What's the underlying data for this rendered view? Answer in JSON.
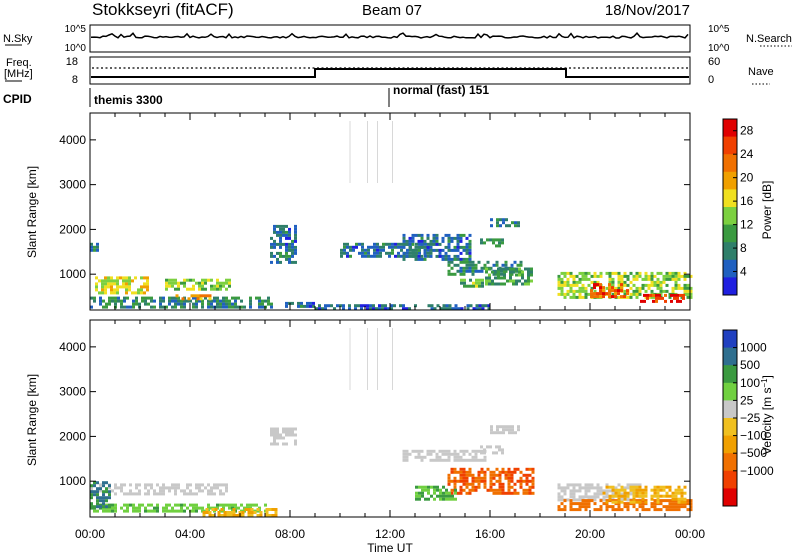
{
  "header": {
    "station": "Stokkseyri (fitACF)",
    "beam": "Beam 07",
    "date": "18/Nov/2017"
  },
  "strip_panels": {
    "sky_noise": {
      "left_label": "N.Sky",
      "left_ticks": [
        "10^5",
        "10^0"
      ],
      "right_label": "N.Search",
      "right_ticks": [
        "10^5",
        "10^0"
      ]
    },
    "frequency": {
      "left_label_line1": "Freq.",
      "left_label_line2": "[MHz]",
      "left_ticks": [
        "18",
        "8"
      ],
      "right_label": "Nave",
      "right_ticks": [
        "60",
        "0"
      ]
    },
    "cpid": {
      "label": "CPID",
      "segments": [
        {
          "start": "00:00",
          "text": "themis 3300"
        },
        {
          "start": "12:00",
          "text": "normal (fast) 151"
        }
      ]
    }
  },
  "chart_data": [
    {
      "type": "heatmap",
      "title": "",
      "xlabel": "",
      "ylabel": "Slant Range [km]",
      "yticks": [
        "1000",
        "2000",
        "3000",
        "4000"
      ],
      "ylim": [
        200,
        4600
      ],
      "xlim": [
        "00:00",
        "24:00"
      ],
      "colorbar": {
        "label": "Power [dB]",
        "ticks": [
          "4",
          "8",
          "12",
          "16",
          "20",
          "24",
          "28"
        ],
        "colors": [
          "#2020e0",
          "#2060c0",
          "#2f7f6a",
          "#3a9a40",
          "#7cd040",
          "#f0e020",
          "#f0a000",
          "#f07000",
          "#f04000",
          "#e00000"
        ]
      },
      "echo_regions": [
        {
          "t0": 0.0,
          "t1": 7.3,
          "r0": 250,
          "r1": 500,
          "level": 8
        },
        {
          "t0": 0.2,
          "t1": 2.3,
          "r0": 600,
          "r1": 950,
          "level": 16
        },
        {
          "t0": 3.0,
          "t1": 5.6,
          "r0": 650,
          "r1": 900,
          "level": 14
        },
        {
          "t0": 3.3,
          "t1": 4.8,
          "r0": 450,
          "r1": 550,
          "level": 20
        },
        {
          "t0": 7.8,
          "t1": 9.0,
          "r0": 260,
          "r1": 380,
          "level": 6
        },
        {
          "t0": 9.0,
          "t1": 13.0,
          "r0": 250,
          "r1": 330,
          "level": 5
        },
        {
          "t0": 13.5,
          "t1": 16.0,
          "r0": 250,
          "r1": 330,
          "level": 5
        },
        {
          "t0": 7.2,
          "t1": 8.2,
          "r0": 1250,
          "r1": 2100,
          "level": 6
        },
        {
          "t0": 10.0,
          "t1": 13.5,
          "r0": 1400,
          "r1": 1700,
          "level": 6
        },
        {
          "t0": 12.5,
          "t1": 15.2,
          "r0": 1350,
          "r1": 1900,
          "level": 6
        },
        {
          "t0": 14.3,
          "t1": 17.2,
          "r0": 1000,
          "r1": 1300,
          "level": 8
        },
        {
          "t0": 15.8,
          "t1": 17.7,
          "r0": 750,
          "r1": 1150,
          "level": 10
        },
        {
          "t0": 14.8,
          "t1": 15.7,
          "r0": 700,
          "r1": 900,
          "level": 12
        },
        {
          "t0": 16.0,
          "t1": 17.1,
          "r0": 2100,
          "r1": 2250,
          "level": 8
        },
        {
          "t0": 15.6,
          "t1": 16.5,
          "r0": 1650,
          "r1": 1800,
          "level": 8
        },
        {
          "t0": 18.7,
          "t1": 24.0,
          "r0": 450,
          "r1": 1050,
          "level": 14
        },
        {
          "t0": 20.0,
          "t1": 21.5,
          "r0": 500,
          "r1": 800,
          "level": 24
        },
        {
          "t0": 22.0,
          "t1": 23.8,
          "r0": 380,
          "r1": 560,
          "level": 27
        },
        {
          "t0": 0.0,
          "t1": 0.3,
          "r0": 1500,
          "r1": 1700,
          "level": 6
        }
      ]
    },
    {
      "type": "heatmap",
      "title": "",
      "xlabel": "Time UT",
      "ylabel": "Slant Range [km]",
      "yticks": [
        "1000",
        "2000",
        "3000",
        "4000"
      ],
      "xticks": [
        "00:00",
        "04:00",
        "08:00",
        "12:00",
        "16:00",
        "20:00",
        "00:00"
      ],
      "ylim": [
        200,
        4600
      ],
      "xlim": [
        "00:00",
        "24:00"
      ],
      "colorbar": {
        "label": "Velocity [m s^-1]",
        "ticks": [
          "1000",
          "500",
          "100",
          "25",
          "-25",
          "-100",
          "-500",
          "-1000"
        ],
        "colors": [
          "#2040c0",
          "#2f6f8f",
          "#3a9a40",
          "#70d040",
          "#c8c8c8",
          "#f0c020",
          "#f0a000",
          "#f07000",
          "#f04000",
          "#e00000"
        ]
      },
      "echo_regions": [
        {
          "t0": 0.0,
          "t1": 5.5,
          "r0": 700,
          "r1": 950,
          "level": 0
        },
        {
          "t0": 0.0,
          "t1": 7.0,
          "r0": 300,
          "r1": 500,
          "level": 50
        },
        {
          "t0": 0.0,
          "t1": 0.8,
          "r0": 400,
          "r1": 1000,
          "level": 100
        },
        {
          "t0": 4.5,
          "t1": 7.5,
          "r0": 250,
          "r1": 400,
          "level": -60
        },
        {
          "t0": 7.2,
          "t1": 8.2,
          "r0": 1800,
          "r1": 2200,
          "level": 0
        },
        {
          "t0": 12.5,
          "t1": 15.8,
          "r0": 1450,
          "r1": 1700,
          "level": 0
        },
        {
          "t0": 16.0,
          "t1": 17.1,
          "r0": 2100,
          "r1": 2250,
          "level": 0
        },
        {
          "t0": 15.6,
          "t1": 16.5,
          "r0": 1650,
          "r1": 1800,
          "level": 0
        },
        {
          "t0": 14.3,
          "t1": 17.7,
          "r0": 700,
          "r1": 1300,
          "level": -300
        },
        {
          "t0": 13.0,
          "t1": 14.6,
          "r0": 600,
          "r1": 900,
          "level": 60
        },
        {
          "t0": 18.7,
          "t1": 22.0,
          "r0": 600,
          "r1": 950,
          "level": 0
        },
        {
          "t0": 18.7,
          "t1": 24.0,
          "r0": 380,
          "r1": 600,
          "level": -150
        },
        {
          "t0": 20.5,
          "t1": 23.8,
          "r0": 550,
          "r1": 900,
          "level": -60
        }
      ]
    }
  ]
}
